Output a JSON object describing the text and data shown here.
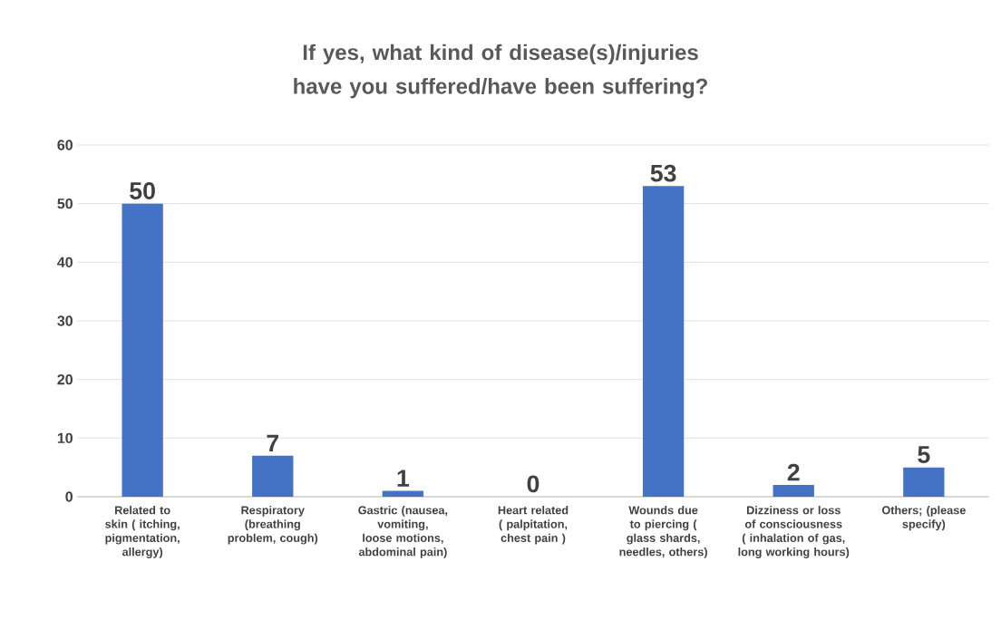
{
  "chart_data": {
    "type": "bar",
    "title": "If yes, what kind of disease(s)/injuries have you suffered/have been suffering?",
    "categories": [
      "Related to skin ( itching, pigmentation, allergy)",
      "Respiratory (breathing problem, cough)",
      "Gastric (nausea, vomiting, loose motions, abdominal pain)",
      "Heart related ( palpitation, chest pain )",
      "Wounds due to piercing ( glass shards, needles, others)",
      "Dizziness or loss of consciousness ( inhalation of gas, long working hours)",
      "Others; (please specify)"
    ],
    "values": [
      50,
      7,
      1,
      0,
      53,
      2,
      5
    ],
    "color": "#4472c4",
    "ylim": [
      0,
      60
    ],
    "yticks": [
      0,
      10,
      20,
      30,
      40,
      50,
      60
    ],
    "grid": "y",
    "data_labels": true
  }
}
